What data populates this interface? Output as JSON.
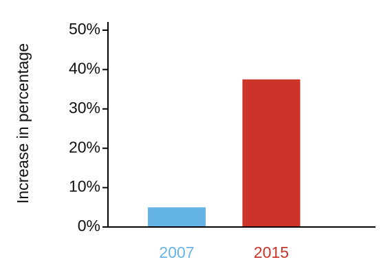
{
  "chart_data": {
    "type": "bar",
    "y_label": "Increase in percentage",
    "categories": [
      "2007",
      "2015"
    ],
    "values": [
      5,
      37.5
    ],
    "colors": [
      "#64b5e6",
      "#cc3329"
    ],
    "ylim": [
      0,
      50
    ],
    "yticks": [
      {
        "value": 0,
        "label": "0%"
      },
      {
        "value": 10,
        "label": "10%"
      },
      {
        "value": 20,
        "label": "20%"
      },
      {
        "value": 30,
        "label": "30%"
      },
      {
        "value": 40,
        "label": "40%"
      },
      {
        "value": 50,
        "label": "50%"
      }
    ],
    "grid": false
  }
}
